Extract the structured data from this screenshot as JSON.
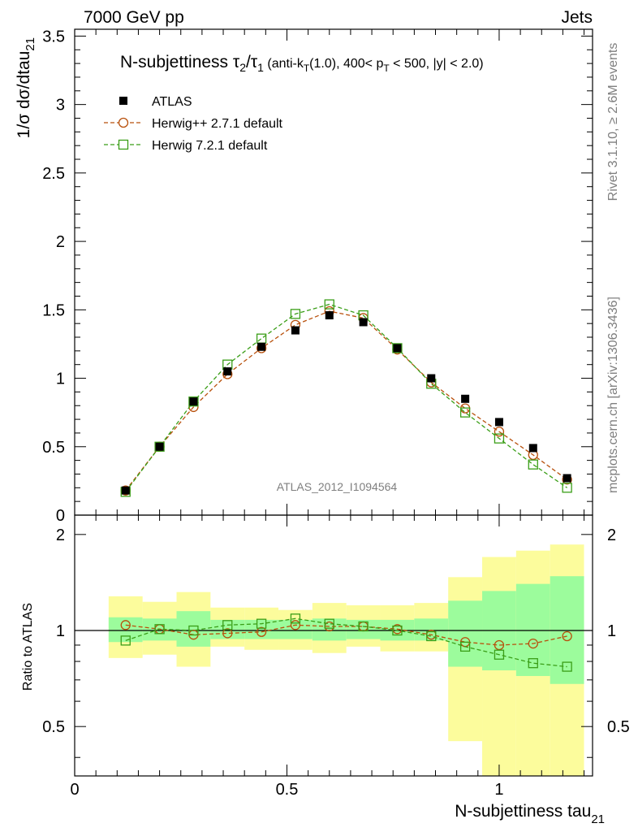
{
  "header": {
    "left": "7000 GeV pp",
    "right": "Jets"
  },
  "side_labels": {
    "rivet": "Rivet 3.1.10, ≥ 2.6M events",
    "mcplots": "mcplots.cern.ch [arXiv:1306.3436]"
  },
  "watermark": "ATLAS_2012_I1094564",
  "colors": {
    "atlas": "#000000",
    "herwigpp": "#b8500c",
    "herwig7": "#3a9e17",
    "band_inner": "#9cfc9c",
    "band_outer": "#fcfc9c"
  },
  "chart_data": [
    {
      "type": "scatter",
      "panel": "main",
      "title": "N-subjettiness τ2/τ1 (anti-kT(1.0), 400< pT < 500, |y| < 2.0)",
      "ylabel": "1/σ dσ/dtau21",
      "ylim": [
        0,
        3.55
      ],
      "yticks": [
        "0",
        "0.5",
        "1",
        "1.5",
        "2",
        "2.5",
        "3",
        "3.5"
      ],
      "legend": [
        "ATLAS",
        "Herwig++ 2.7.1 default",
        "Herwig 7.2.1 default"
      ],
      "legend_position": "top-left",
      "x": [
        0.12,
        0.2,
        0.28,
        0.36,
        0.44,
        0.52,
        0.6,
        0.68,
        0.76,
        0.84,
        0.92,
        1.0,
        1.08,
        1.16
      ],
      "series": [
        {
          "name": "ATLAS",
          "marker": "filled-square",
          "values": [
            0.18,
            0.5,
            0.83,
            1.05,
            1.23,
            1.35,
            1.46,
            1.41,
            1.22,
            1.0,
            0.85,
            0.68,
            0.49,
            0.27
          ]
        },
        {
          "name": "Herwig++ 2.7.1 default",
          "marker": "open-circle",
          "line": "dashed",
          "values": [
            0.18,
            0.5,
            0.79,
            1.03,
            1.22,
            1.39,
            1.49,
            1.44,
            1.21,
            0.97,
            0.78,
            0.61,
            0.44,
            0.26
          ]
        },
        {
          "name": "Herwig 7.2.1 default",
          "marker": "open-square",
          "line": "dashed",
          "values": [
            0.17,
            0.5,
            0.83,
            1.1,
            1.29,
            1.47,
            1.54,
            1.46,
            1.22,
            0.96,
            0.75,
            0.56,
            0.37,
            0.2
          ]
        }
      ]
    },
    {
      "type": "scatter",
      "panel": "ratio",
      "ylabel": "Ratio to ATLAS",
      "xlabel": "N-subjettiness tau21",
      "xlim": [
        0,
        1.22
      ],
      "xticks": [
        "0",
        "0.5",
        "1"
      ],
      "ylim": [
        0.35,
        2.3
      ],
      "yticks": [
        "0.5",
        "1",
        "2"
      ],
      "log_y": true,
      "bin_edges": [
        0.08,
        0.16,
        0.24,
        0.32,
        0.4,
        0.48,
        0.56,
        0.64,
        0.72,
        0.8,
        0.88,
        0.96,
        1.04,
        1.12,
        1.2
      ],
      "band_inner": {
        "low": [
          0.92,
          0.93,
          0.89,
          0.94,
          0.94,
          0.94,
          0.93,
          0.94,
          0.93,
          0.93,
          0.77,
          0.75,
          0.72,
          0.68
        ],
        "high": [
          1.1,
          1.09,
          1.15,
          1.08,
          1.08,
          1.08,
          1.09,
          1.08,
          1.08,
          1.09,
          1.24,
          1.33,
          1.4,
          1.48
        ]
      },
      "band_outer": {
        "low": [
          0.82,
          0.84,
          0.77,
          0.89,
          0.87,
          0.87,
          0.85,
          0.89,
          0.86,
          0.86,
          0.45,
          0.33,
          0.33,
          0.33
        ],
        "high": [
          1.28,
          1.23,
          1.32,
          1.18,
          1.18,
          1.16,
          1.22,
          1.2,
          1.2,
          1.22,
          1.47,
          1.7,
          1.78,
          1.86
        ]
      },
      "series": [
        {
          "name": "Herwig++ 2.7.1 default",
          "values": [
            1.04,
            1.01,
            0.97,
            0.98,
            0.99,
            1.04,
            1.03,
            1.03,
            1.01,
            0.97,
            0.92,
            0.9,
            0.91,
            0.96
          ]
        },
        {
          "name": "Herwig 7.2.1 default",
          "values": [
            0.93,
            1.01,
            1.0,
            1.04,
            1.05,
            1.09,
            1.05,
            1.03,
            1.0,
            0.96,
            0.89,
            0.84,
            0.79,
            0.77
          ]
        }
      ]
    }
  ]
}
